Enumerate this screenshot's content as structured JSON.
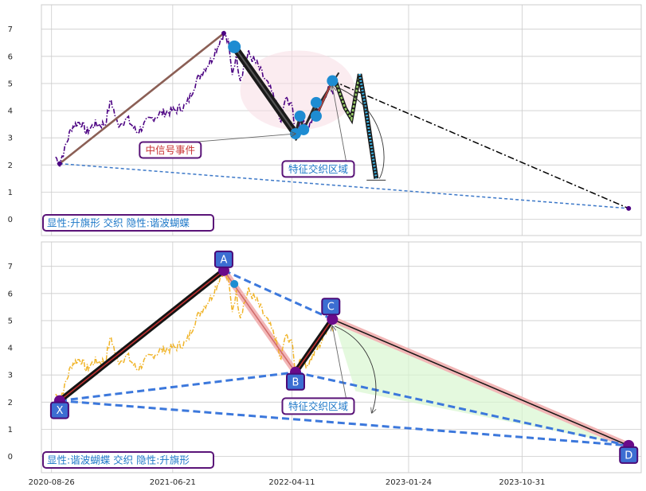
{
  "chart_data": [
    {
      "type": "line",
      "panel": "top",
      "x_axis": "dates",
      "xlim": [
        "2020-08-01",
        "2024-08-20"
      ],
      "ylim": [
        -0.6,
        7.9
      ],
      "yticks": [
        0,
        1,
        2,
        3,
        4,
        5,
        6,
        7
      ],
      "grid": true,
      "price_series": {
        "style": "dash-dot",
        "points": [
          [
            "2020-09-05",
            2.3
          ],
          [
            "2020-09-15",
            2.05
          ],
          [
            "2020-09-28",
            2.6
          ],
          [
            "2020-10-15",
            3.4
          ],
          [
            "2020-11-05",
            3.6
          ],
          [
            "2020-11-20",
            3.2
          ],
          [
            "2020-12-10",
            3.5
          ],
          [
            "2021-01-05",
            3.5
          ],
          [
            "2021-01-20",
            4.4
          ],
          [
            "2021-02-05",
            3.5
          ],
          [
            "2021-03-01",
            3.7
          ],
          [
            "2021-03-25",
            3.2
          ],
          [
            "2021-04-20",
            3.6
          ],
          [
            "2021-05-20",
            3.9
          ],
          [
            "2021-06-25",
            4.0
          ],
          [
            "2021-07-25",
            4.2
          ],
          [
            "2021-08-15",
            5.0
          ],
          [
            "2021-09-05",
            5.5
          ],
          [
            "2021-09-25",
            5.9
          ],
          [
            "2021-10-10",
            6.4
          ],
          [
            "2021-10-25",
            6.85
          ],
          [
            "2021-11-05",
            6.5
          ],
          [
            "2021-11-15",
            5.4
          ],
          [
            "2021-11-25",
            6.0
          ],
          [
            "2021-12-05",
            5.2
          ],
          [
            "2021-12-25",
            6.1
          ],
          [
            "2022-01-15",
            5.7
          ],
          [
            "2022-02-05",
            5.1
          ],
          [
            "2022-03-01",
            4.4
          ],
          [
            "2022-03-15",
            3.5
          ],
          [
            "2022-03-25",
            4.4
          ],
          [
            "2022-04-10",
            4.3
          ],
          [
            "2022-04-20",
            3.1
          ],
          [
            "2022-05-01",
            3.6
          ],
          [
            "2022-05-20",
            3.4
          ],
          [
            "2022-06-10",
            3.9
          ],
          [
            "2022-06-25",
            4.3
          ],
          [
            "2022-07-10",
            4.9
          ],
          [
            "2022-07-25",
            4.6
          ]
        ]
      },
      "lines": [
        {
          "name": "flag-pole-line",
          "color": "#8b5f55",
          "style": "solid",
          "points": [
            [
              "2020-09-15",
              2.05
            ],
            [
              "2021-10-25",
              6.85
            ]
          ]
        },
        {
          "name": "flag-base-line",
          "color": "#3c78c8",
          "style": "dashed",
          "points": [
            [
              "2020-09-15",
              2.05
            ],
            [
              "2024-07-20",
              0.4
            ]
          ]
        },
        {
          "name": "projection-line",
          "color": "#000000",
          "style": "dash-dot",
          "points": [
            [
              "2022-07-20",
              5.1
            ],
            [
              "2024-07-20",
              0.4
            ]
          ]
        },
        {
          "name": "rebound-line",
          "color": "#2d2d2d",
          "style": "solid",
          "points": [
            [
              "2022-04-20",
              2.9
            ],
            [
              "2022-08-05",
              5.4
            ]
          ]
        }
      ],
      "pivots": [
        {
          "date": "2021-11-20",
          "value": 6.35
        },
        {
          "date": "2022-04-20",
          "value": 3.15
        },
        {
          "date": "2022-05-10",
          "value": 3.3
        },
        {
          "date": "2022-05-01",
          "value": 3.8
        },
        {
          "date": "2022-06-10",
          "value": 3.8
        },
        {
          "date": "2022-06-10",
          "value": 4.3
        },
        {
          "date": "2022-07-20",
          "value": 5.1
        }
      ],
      "end_points": [
        {
          "date": "2020-09-15",
          "value": 2.05
        },
        {
          "date": "2021-10-25",
          "value": 6.85
        },
        {
          "date": "2024-07-20",
          "value": 0.4
        }
      ],
      "zigzag": [
        [
          "2022-07-25",
          5.2
        ],
        [
          "2022-08-20",
          4.1
        ],
        [
          "2022-09-05",
          3.7
        ],
        [
          "2022-09-25",
          5.35
        ],
        [
          "2022-10-10",
          4.1
        ],
        [
          "2022-11-05",
          1.5
        ]
      ],
      "annotations": [
        {
          "text": "中信号事件",
          "box_at": [
            "2021-06-15",
            2.55
          ],
          "arrow_to": [
            "2022-04-20",
            3.15
          ],
          "text_color": "#c83232"
        },
        {
          "text": "特征交织区域",
          "box_at": [
            "2022-06-15",
            1.85
          ],
          "arrow_to": [
            "2022-07-20",
            4.9
          ],
          "text_color": "#1e78c8"
        }
      ],
      "legend_text": "显性:升旗形 交织 隐性:谐波蝴蝶"
    },
    {
      "type": "line",
      "panel": "bottom",
      "x_axis": "dates",
      "xlim": [
        "2020-08-01",
        "2024-08-20"
      ],
      "ylim": [
        -0.6,
        7.9
      ],
      "yticks": [
        0,
        1,
        2,
        3,
        4,
        5,
        6,
        7
      ],
      "xticks": [
        "2020-08-26",
        "2021-06-21",
        "2022-04-11",
        "2023-01-24",
        "2023-10-31"
      ],
      "grid": true,
      "price_series": {
        "style": "dash-dot",
        "color": "#f0b428"
      },
      "pattern_points": [
        {
          "label": "X",
          "date": "2020-09-15",
          "value": 2.05
        },
        {
          "label": "A",
          "date": "2021-10-25",
          "value": 6.85
        },
        {
          "label": "B",
          "date": "2022-04-20",
          "value": 3.1
        },
        {
          "label": "C",
          "date": "2022-07-20",
          "value": 5.05
        },
        {
          "label": "D",
          "date": "2024-07-20",
          "value": 0.4
        }
      ],
      "annotations": [
        {
          "text": "特征交织区域",
          "box_at": [
            "2022-06-15",
            1.85
          ],
          "arrow_to": [
            "2022-07-20",
            4.8
          ],
          "text_color": "#1e78c8"
        }
      ],
      "legend_text": "显性:谐波蝴蝶 交织 隐性:升旗形"
    }
  ],
  "colors": {
    "grid": "#cccccc",
    "frame": "#cccccc",
    "purple": "#4b0082",
    "blue_fill": "#3c6ed2",
    "pivot_blue": "#1e8cd2",
    "dashed_blue": "#3c78dc",
    "annotation_edge": "#5a1478"
  }
}
